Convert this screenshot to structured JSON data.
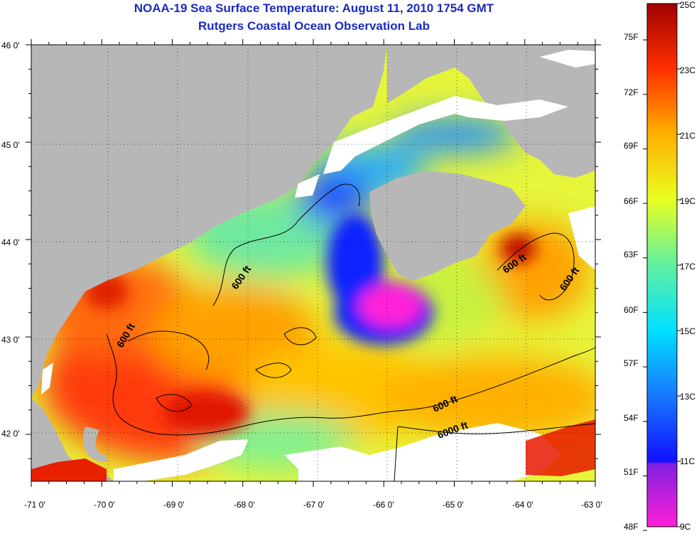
{
  "title": "NOAA-19 Sea Surface Temperature:  August 11, 2010 1754 GMT",
  "subtitle": "Rutgers Coastal Ocean Observation Lab",
  "lat_ticks": [
    "46 0'",
    "45 0'",
    "44 0'",
    "43 0'",
    "42 0'"
  ],
  "lon_ticks": [
    "-71 0'",
    "-70 0'",
    "-69 0'",
    "-68 0'",
    "-67 0'",
    "-66 0'",
    "-65 0'",
    "-64 0'",
    "-63 0'"
  ],
  "contour_labels": [
    "600 ft",
    "600 ft",
    "600 ft",
    "600 ft",
    "600 ft",
    "6000 ft"
  ],
  "colorbar": {
    "fahrenheit_labels": [
      "75F",
      "72F",
      "69F",
      "66F",
      "63F",
      "60F",
      "57F",
      "54F",
      "51F",
      "48F"
    ],
    "celsius_labels": [
      "25C",
      "23C",
      "21C",
      "19C",
      "17C",
      "15C",
      "13C",
      "11C",
      "9C"
    ],
    "range_c": [
      9,
      25
    ]
  },
  "colors": {
    "land": "#b7b7b7",
    "cloud": "#ffffff",
    "title": "#1a2bbf",
    "contour": "#000000"
  }
}
